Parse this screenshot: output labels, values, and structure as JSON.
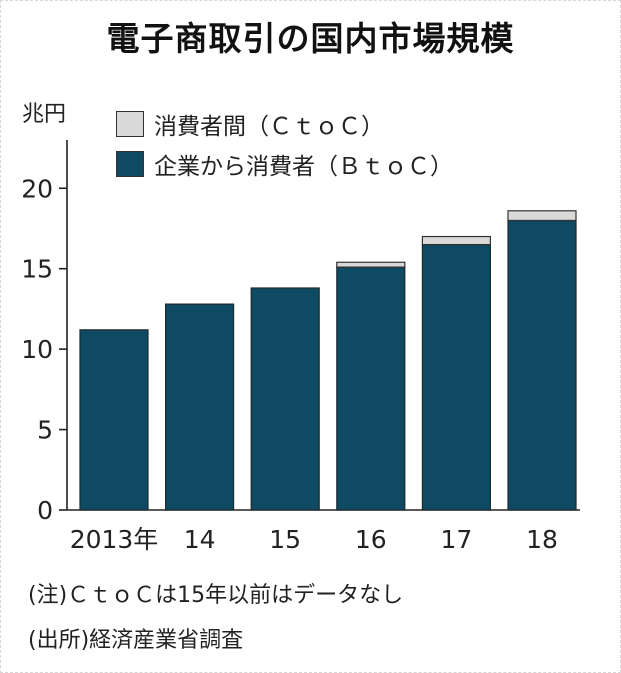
{
  "title": "電子商取引の国内市場規模",
  "unit": "兆円",
  "legend": [
    {
      "label": "消費者間（ＣｔｏＣ）",
      "color": "#d9d9d9"
    },
    {
      "label": "企業から消費者（ＢｔｏＣ）",
      "color": "#0e4b62"
    }
  ],
  "notes": {
    "note": "(注)ＣｔｏＣは15年以前はデータなし",
    "source": "(出所)経済産業省調査"
  },
  "chart_data": {
    "type": "bar",
    "stacked": true,
    "categories": [
      "2013年",
      "14",
      "15",
      "16",
      "17",
      "18"
    ],
    "series": [
      {
        "name": "企業から消費者（ＢｔｏＣ）",
        "values": [
          11.2,
          12.8,
          13.8,
          15.1,
          16.5,
          18.0
        ],
        "color": "#0e4b62"
      },
      {
        "name": "消費者間（ＣｔｏＣ）",
        "values": [
          null,
          null,
          null,
          0.3,
          0.5,
          0.6
        ],
        "color": "#d9d9d9"
      }
    ],
    "ylabel": "兆円",
    "ylim": [
      0,
      23
    ],
    "yticks": [
      0,
      5,
      10,
      15,
      20
    ],
    "grid": false,
    "legend_position": "top-left"
  }
}
